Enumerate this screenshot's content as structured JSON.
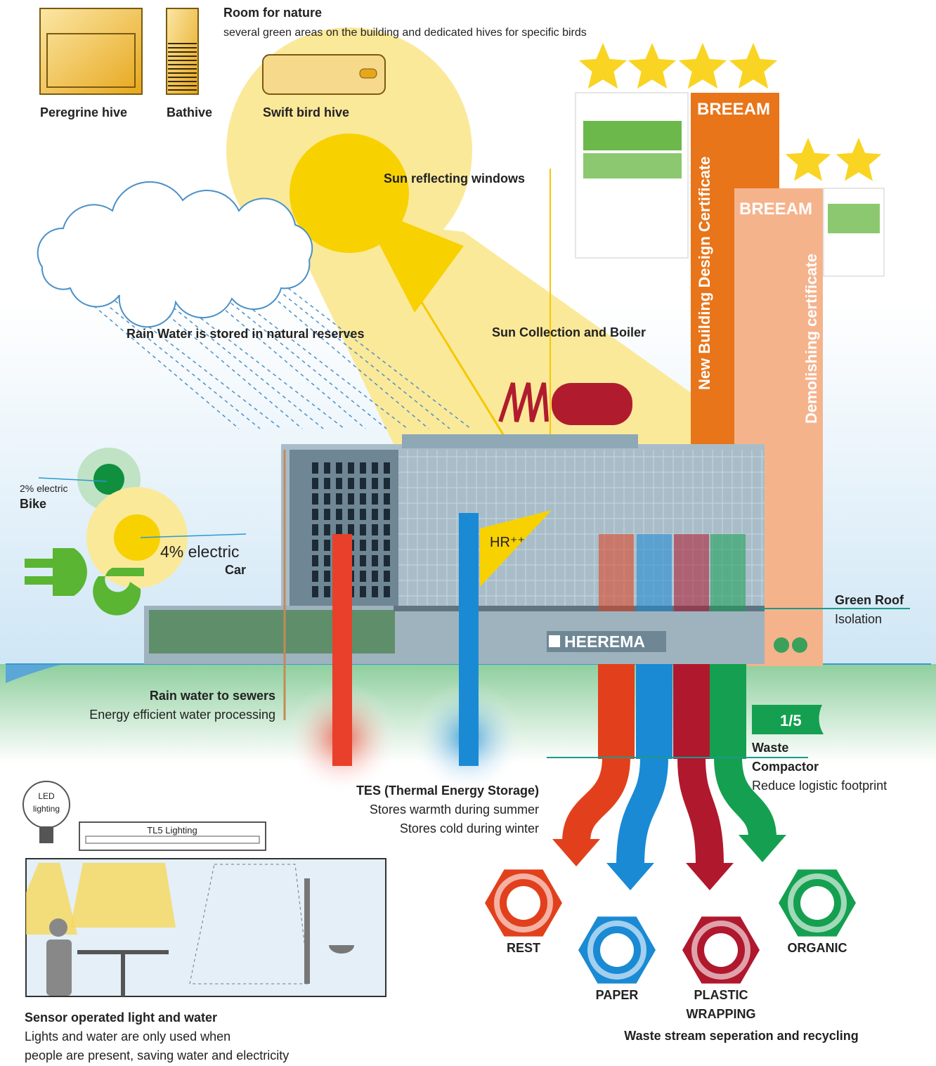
{
  "nature": {
    "title": "Room for nature",
    "description": "several green areas on the building and dedicated hives for specific birds",
    "hives": [
      "Peregrine hive",
      "Bathive",
      "Swift bird hive"
    ]
  },
  "sun": {
    "windows": "Sun reflecting windows",
    "collection": "Sun Collection and Boiler",
    "glazing": "HR⁺⁺"
  },
  "breeam": {
    "new": {
      "brand": "BREEAM",
      "label": "New Building Design Certificate"
    },
    "demolish": {
      "brand": "BREEAM",
      "label": "Demolishing certificate"
    }
  },
  "rain": {
    "stored": "Rain Water is stored in natural reserves",
    "sewers": {
      "title": "Rain water to sewers",
      "description": "Energy efficient water processing"
    }
  },
  "mobility": {
    "bike": {
      "share": "2% electric",
      "label": "Bike"
    },
    "car": {
      "share": "4% electric",
      "label": "Car"
    }
  },
  "building": {
    "name": "HEEREMA"
  },
  "green_roof": {
    "title": "Green Roof",
    "description": "Isolation"
  },
  "compactor": {
    "ratio": "1/5",
    "title_lines": [
      "Waste",
      "Compactor"
    ],
    "description": "Reduce logistic footprint"
  },
  "tes": {
    "title": "TES (Thermal Energy Storage)",
    "lines": [
      "Stores warmth during summer",
      "Stores cold during winter"
    ]
  },
  "lighting": {
    "led": [
      "LED",
      "lighting"
    ],
    "tl5": "TL5 Lighting"
  },
  "sensor": {
    "title": "Sensor operated light and water",
    "lines": [
      "Lights and water are only used when",
      "people are present, saving water and electricity"
    ]
  },
  "waste": {
    "bins": [
      [
        "REST"
      ],
      [
        "PAPER"
      ],
      [
        "PLASTIC",
        "WRAPPING"
      ],
      [
        "ORGANIC"
      ]
    ],
    "caption": "Waste stream seperation and recycling"
  }
}
